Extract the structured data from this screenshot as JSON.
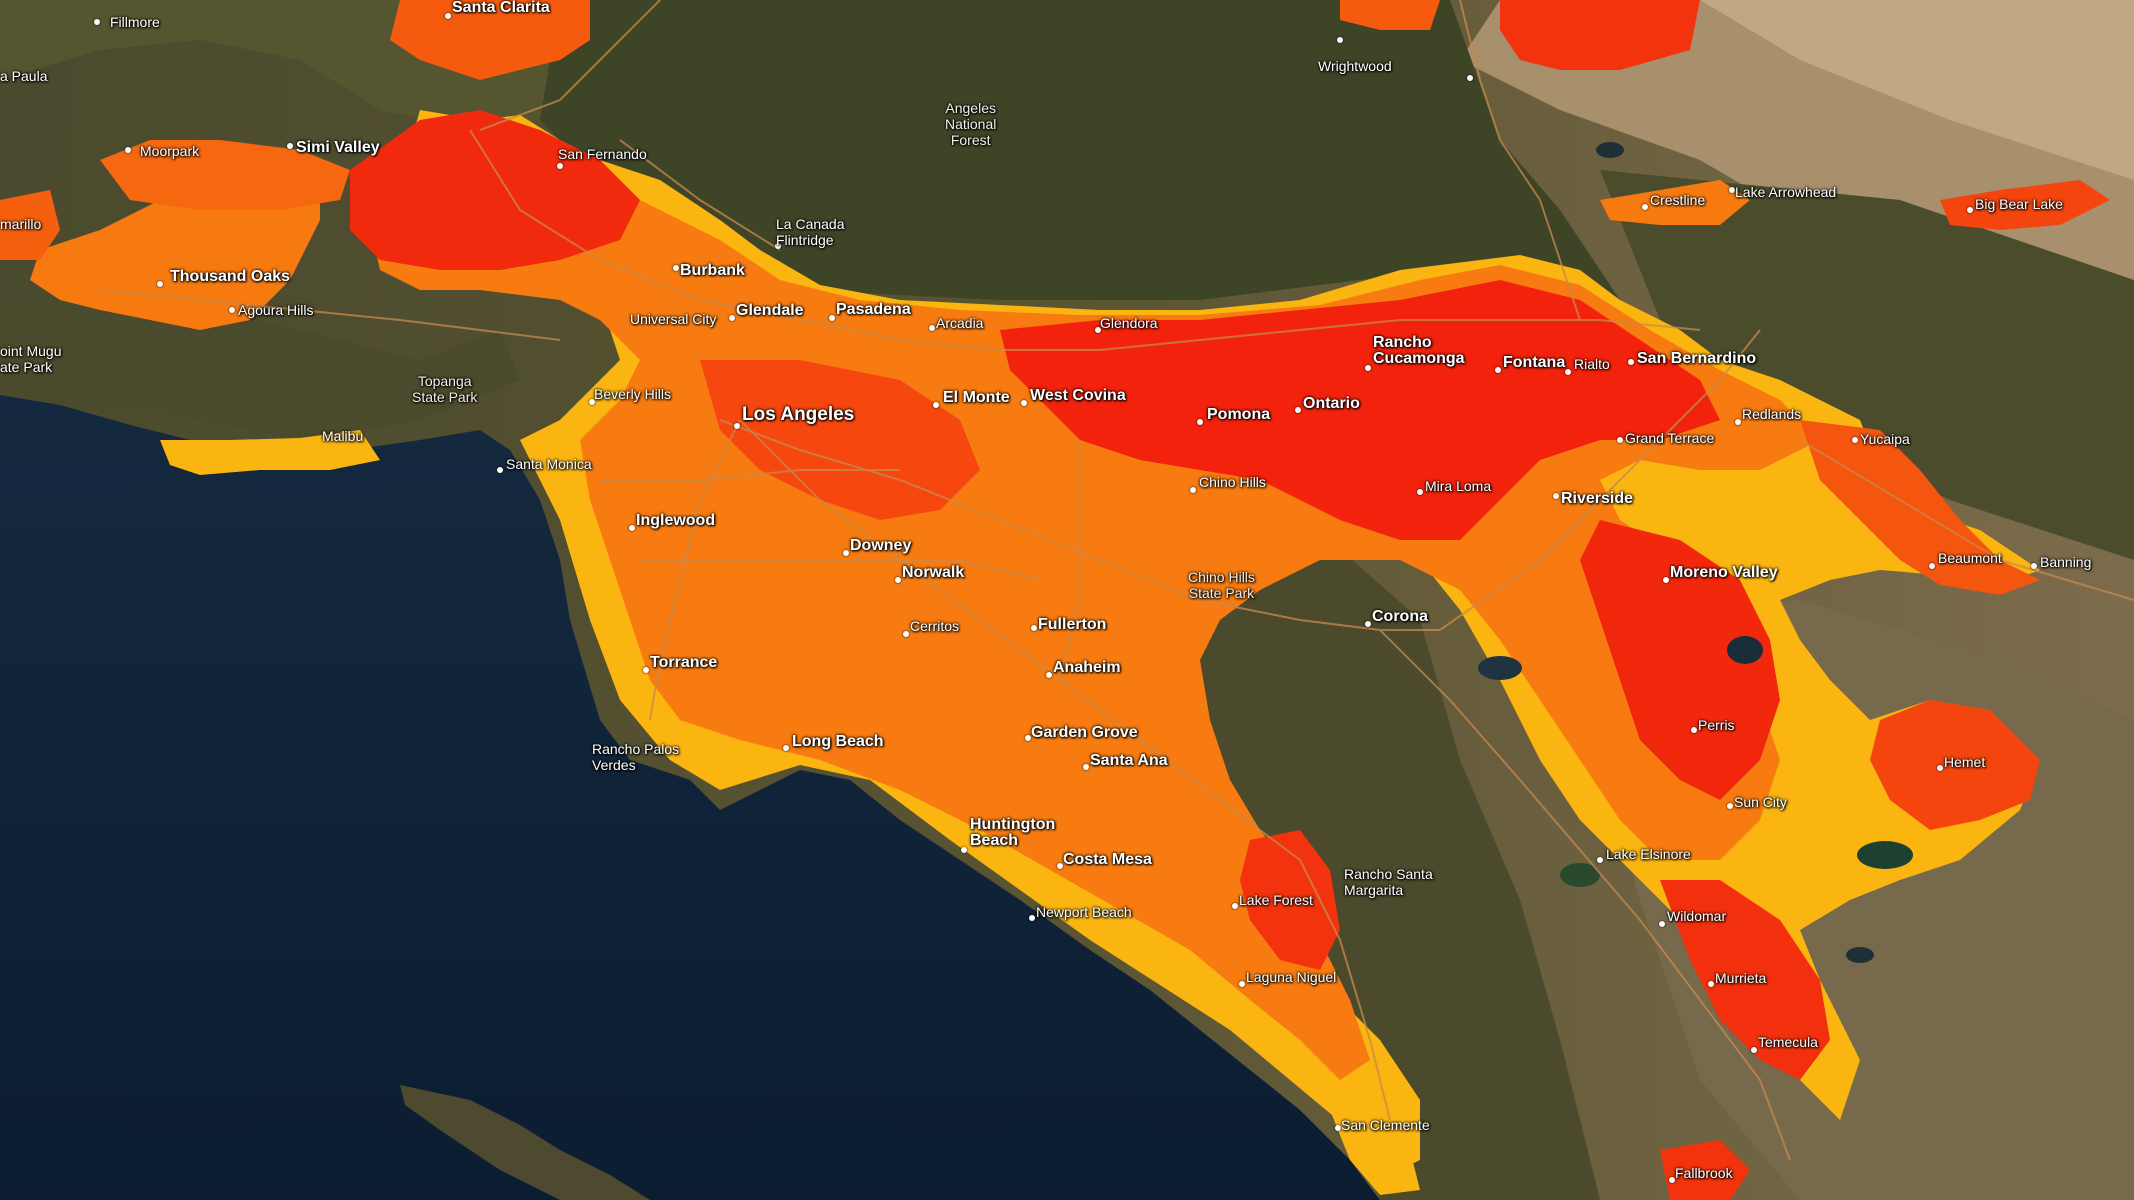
{
  "colors": {
    "ocean": "#0f2238",
    "terrain_dark": "#3f4a2b",
    "terrain_mid": "#5e5636",
    "terrain_light": "#8c7a5a",
    "desert": "#b49a75",
    "heat_high": "#f2230e",
    "heat_mid": "#f7600e",
    "heat_low": "#f99a12",
    "heat_edge": "#fbbf12",
    "road": "#c98a4a"
  },
  "places": [
    {
      "name": "Fillmore",
      "cls": "minor"
    },
    {
      "name": "Santa Clarita",
      "cls": "major"
    },
    {
      "name": "a Paula",
      "cls": "minor"
    },
    {
      "name": "Moorpark",
      "cls": "minor"
    },
    {
      "name": "Simi Valley",
      "cls": "major"
    },
    {
      "name": "San Fernando",
      "cls": "minor"
    },
    {
      "name": "marillo",
      "cls": "minor"
    },
    {
      "name": "Thousand Oaks",
      "cls": "major"
    },
    {
      "name": "Agoura Hills",
      "cls": "minor"
    },
    {
      "name": "La Canada\nFlintridge",
      "cls": "minor twoline"
    },
    {
      "name": "Burbank",
      "cls": "major"
    },
    {
      "name": "Glendale",
      "cls": "major"
    },
    {
      "name": "Pasadena",
      "cls": "major"
    },
    {
      "name": "Universal City",
      "cls": "minor"
    },
    {
      "name": "Arcadia",
      "cls": "minor"
    },
    {
      "name": "Glendora",
      "cls": "minor"
    },
    {
      "name": "Wrightwood",
      "cls": "minor"
    },
    {
      "name": "Crestline",
      "cls": "minor"
    },
    {
      "name": "Lake Arrowhead",
      "cls": "minor"
    },
    {
      "name": "Big Bear Lake",
      "cls": "minor"
    },
    {
      "name": "oint Mugu\nate Park",
      "cls": "minor twoline"
    },
    {
      "name": "Beverly Hills",
      "cls": "minor"
    },
    {
      "name": "Los Angeles",
      "cls": "big"
    },
    {
      "name": "Malibu",
      "cls": "minor"
    },
    {
      "name": "Santa Monica",
      "cls": "minor"
    },
    {
      "name": "El Monte",
      "cls": "major"
    },
    {
      "name": "West Covina",
      "cls": "major"
    },
    {
      "name": "Pomona",
      "cls": "major"
    },
    {
      "name": "Ontario",
      "cls": "major"
    },
    {
      "name": "Rancho\nCucamonga",
      "cls": "major twoline"
    },
    {
      "name": "Fontana",
      "cls": "major"
    },
    {
      "name": "Rialto",
      "cls": "minor"
    },
    {
      "name": "San Bernardino",
      "cls": "major"
    },
    {
      "name": "Redlands",
      "cls": "minor"
    },
    {
      "name": "Grand Terrace",
      "cls": "minor"
    },
    {
      "name": "Yucaipa",
      "cls": "minor"
    },
    {
      "name": "Inglewood",
      "cls": "major"
    },
    {
      "name": "Downey",
      "cls": "major"
    },
    {
      "name": "Norwalk",
      "cls": "major"
    },
    {
      "name": "Chino Hills",
      "cls": "minor"
    },
    {
      "name": "Mira Loma",
      "cls": "minor"
    },
    {
      "name": "Riverside",
      "cls": "major"
    },
    {
      "name": "Beaumont",
      "cls": "minor"
    },
    {
      "name": "Banning",
      "cls": "minor"
    },
    {
      "name": "Moreno Valley",
      "cls": "major"
    },
    {
      "name": "Cerritos",
      "cls": "minor"
    },
    {
      "name": "Fullerton",
      "cls": "major"
    },
    {
      "name": "Corona",
      "cls": "major"
    },
    {
      "name": "Torrance",
      "cls": "major"
    },
    {
      "name": "Anaheim",
      "cls": "major"
    },
    {
      "name": "Garden Grove",
      "cls": "major"
    },
    {
      "name": "Santa Ana",
      "cls": "major"
    },
    {
      "name": "Perris",
      "cls": "minor"
    },
    {
      "name": "Hemet",
      "cls": "minor"
    },
    {
      "name": "Rancho Palos\nVerdes",
      "cls": "minor twoline"
    },
    {
      "name": "Long Beach",
      "cls": "major"
    },
    {
      "name": "Sun City",
      "cls": "minor"
    },
    {
      "name": "Huntington\nBeach",
      "cls": "major twoline"
    },
    {
      "name": "Costa Mesa",
      "cls": "major"
    },
    {
      "name": "Lake Elsinore",
      "cls": "minor"
    },
    {
      "name": "Rancho Santa\nMargarita",
      "cls": "minor twoline"
    },
    {
      "name": "Lake Forest",
      "cls": "minor"
    },
    {
      "name": "Newport Beach",
      "cls": "minor"
    },
    {
      "name": "Wildomar",
      "cls": "minor"
    },
    {
      "name": "Laguna Niguel",
      "cls": "minor"
    },
    {
      "name": "Murrieta",
      "cls": "minor"
    },
    {
      "name": "Temecula",
      "cls": "minor"
    },
    {
      "name": "San Clemente",
      "cls": "minor"
    },
    {
      "name": "Fallbrook",
      "cls": "minor"
    }
  ],
  "parks": [
    {
      "name": "Angeles\nNational\nForest"
    },
    {
      "name": "Topanga\nState Park"
    },
    {
      "name": "Chino Hills\nState Park"
    }
  ]
}
